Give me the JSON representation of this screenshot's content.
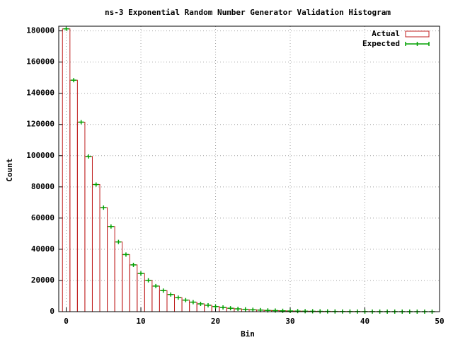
{
  "chart_data": {
    "type": "histogram",
    "title": "ns-3 Exponential Random Number Generator Validation Histogram",
    "x_label": "Bin",
    "y_label": "Count",
    "bins": [
      -0.5,
      0.5,
      1.5,
      2.5,
      3.5,
      4.5,
      5.5,
      6.5,
      7.5,
      8.5,
      9.5,
      10.5,
      11.5,
      12.5,
      13.5,
      14.5,
      15.5,
      16.5,
      17.5,
      18.5,
      19.5,
      20.5,
      21.5,
      22.5,
      23.5,
      24.5,
      25.5,
      26.5,
      27.5,
      28.5,
      29.5,
      30.5,
      31.5,
      32.5,
      33.5,
      34.5,
      35.5,
      36.5,
      37.5,
      38.5,
      39.5,
      40.5,
      41.5,
      42.5,
      43.5,
      44.5,
      45.5,
      46.5,
      47.5,
      48.5,
      49.5
    ],
    "x": [
      0,
      1,
      2,
      3,
      4,
      5,
      6,
      7,
      8,
      9,
      10,
      11,
      12,
      13,
      14,
      15,
      16,
      17,
      18,
      19,
      20,
      21,
      22,
      23,
      24,
      25,
      26,
      27,
      28,
      29,
      30,
      31,
      32,
      33,
      34,
      35,
      36,
      37,
      38,
      39,
      40,
      41,
      42,
      43,
      44,
      45,
      46,
      47,
      48,
      49
    ],
    "series": [
      {
        "name": "Actual",
        "color": "#c02020",
        "values": [
          181300,
          148400,
          121500,
          99500,
          81500,
          66700,
          54600,
          44700,
          36600,
          30000,
          24500,
          20100,
          16400,
          13500,
          11000,
          9000,
          7400,
          6100,
          5000,
          4100,
          3300,
          2700,
          2200,
          1800,
          1500,
          1200,
          1000,
          800,
          700,
          550,
          450,
          370,
          300,
          250,
          200,
          170,
          130,
          110,
          90,
          80,
          60,
          50,
          40,
          30,
          30,
          20,
          20,
          10,
          10,
          10
        ]
      },
      {
        "name": "Expected",
        "color": "#00a000",
        "values": [
          181300,
          148400,
          121500,
          99500,
          81500,
          66700,
          54600,
          44700,
          36600,
          30000,
          24500,
          20100,
          16400,
          13500,
          11000,
          9000,
          7400,
          6100,
          5000,
          4100,
          3300,
          2700,
          2200,
          1800,
          1500,
          1200,
          1000,
          800,
          700,
          550,
          450,
          370,
          300,
          250,
          200,
          170,
          130,
          110,
          90,
          80,
          60,
          50,
          40,
          30,
          30,
          20,
          20,
          10,
          10,
          10
        ]
      }
    ],
    "xlim": [
      -1,
      50
    ],
    "ylim": [
      0,
      183000
    ],
    "xticks": [
      0,
      10,
      20,
      30,
      40,
      50
    ],
    "yticks": [
      0,
      20000,
      40000,
      60000,
      80000,
      100000,
      120000,
      140000,
      160000,
      180000
    ],
    "grid": true,
    "legend": "top-right"
  }
}
